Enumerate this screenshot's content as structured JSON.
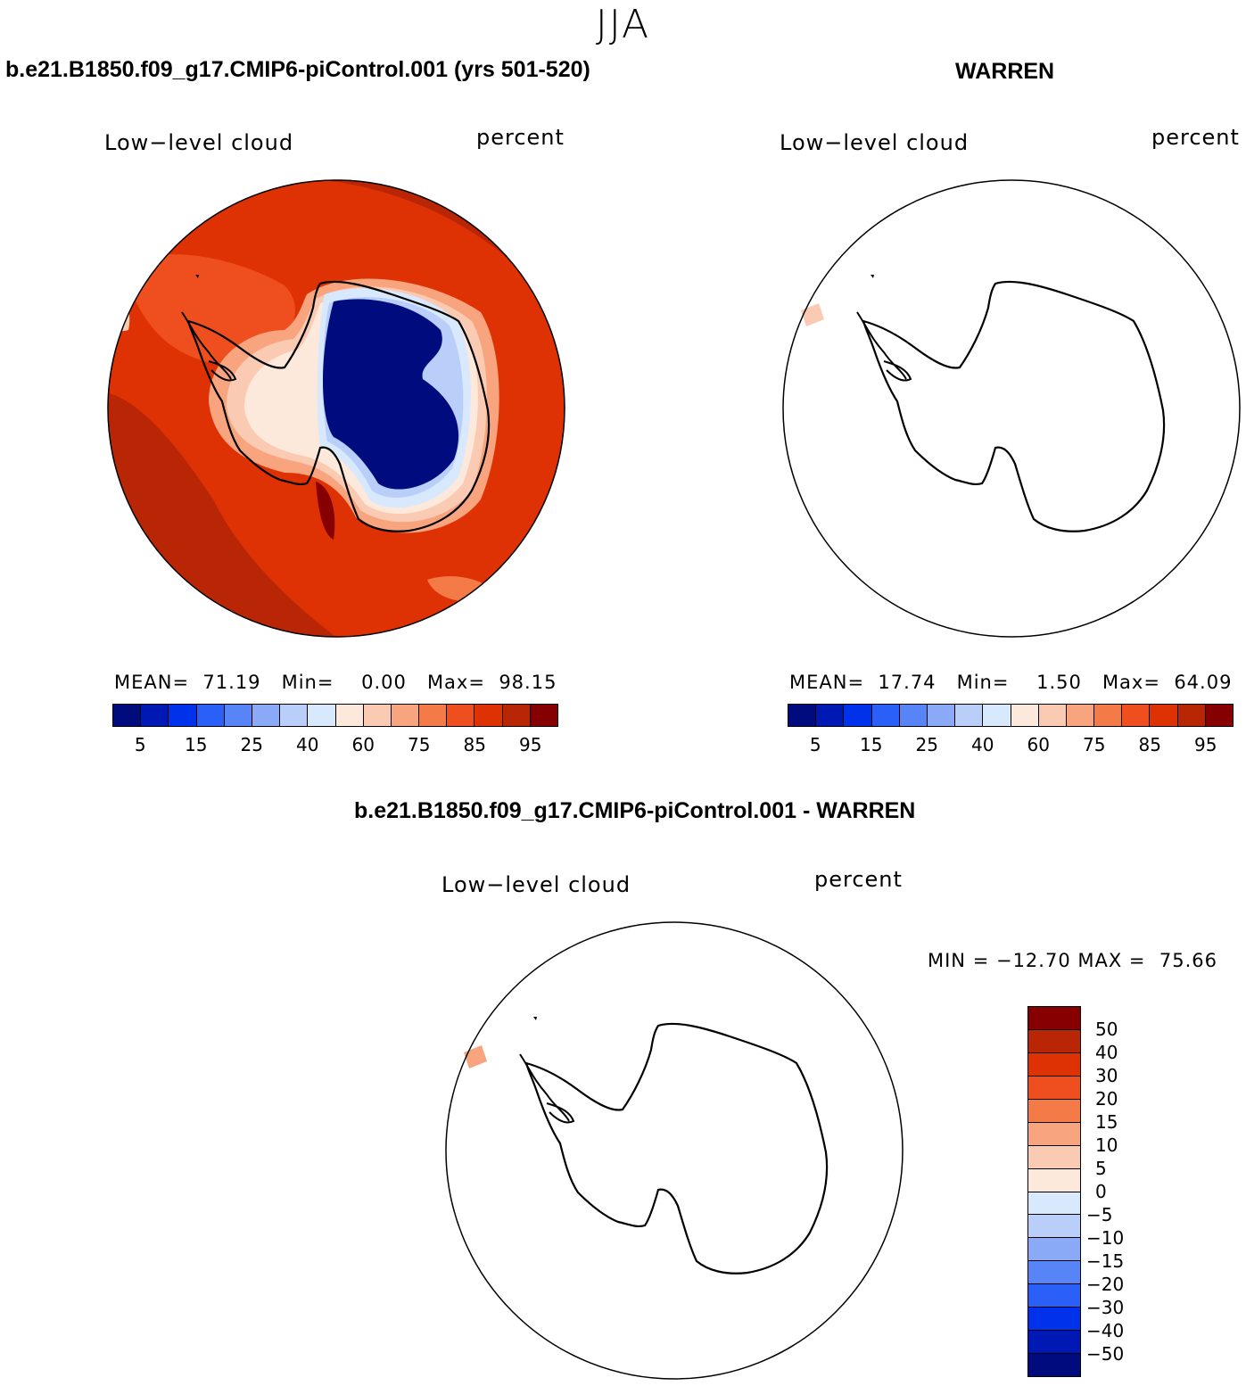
{
  "season": "JJA",
  "panels": [
    {
      "title": "b.e21.B1850.f09_g17.CMIP6-piControl.001 (yrs 501-520)",
      "variable": "Low−level cloud",
      "units": "percent",
      "mean_label": "MEAN=",
      "mean": "71.19",
      "min_label": "Min=",
      "min": "0.00",
      "max_label": "Max=",
      "max": "98.15"
    },
    {
      "title": "WARREN",
      "variable": "Low−level cloud",
      "units": "percent",
      "mean_label": "MEAN=",
      "mean": "17.74",
      "min_label": "Min=",
      "min": "1.50",
      "max_label": "Max=",
      "max": "64.09"
    }
  ],
  "diff": {
    "title": "b.e21.B1850.f09_g17.CMIP6-piControl.001 - WARREN",
    "variable": "Low−level cloud",
    "units": "percent",
    "minmax": "MIN = −12.70 MAX =  75.66"
  },
  "colorbar_main": {
    "colors": [
      "#000c7d",
      "#0019b4",
      "#0032ec",
      "#2a5ff8",
      "#5784f7",
      "#8aa9f7",
      "#b9cffa",
      "#d8e8fd",
      "#fde9db",
      "#fbcab2",
      "#f8a47f",
      "#f47a48",
      "#ef4e1e",
      "#df3204",
      "#b92605",
      "#860001"
    ],
    "labels": [
      "5",
      "15",
      "25",
      "40",
      "60",
      "75",
      "85",
      "95"
    ]
  },
  "colorbar_diff": {
    "colors": [
      "#860001",
      "#b92605",
      "#df3204",
      "#ef4e1e",
      "#f47a48",
      "#f8a47f",
      "#fbcab2",
      "#fde9db",
      "#d8e8fd",
      "#b9cffa",
      "#8aa9f7",
      "#5784f7",
      "#2a5ff8",
      "#0032ec",
      "#0019b4",
      "#000c7d"
    ],
    "labels": [
      "50",
      "40",
      "30",
      "20",
      "15",
      "10",
      "5",
      "0",
      "−5",
      "−10",
      "−15",
      "−20",
      "−30",
      "−40",
      "−50"
    ]
  }
}
